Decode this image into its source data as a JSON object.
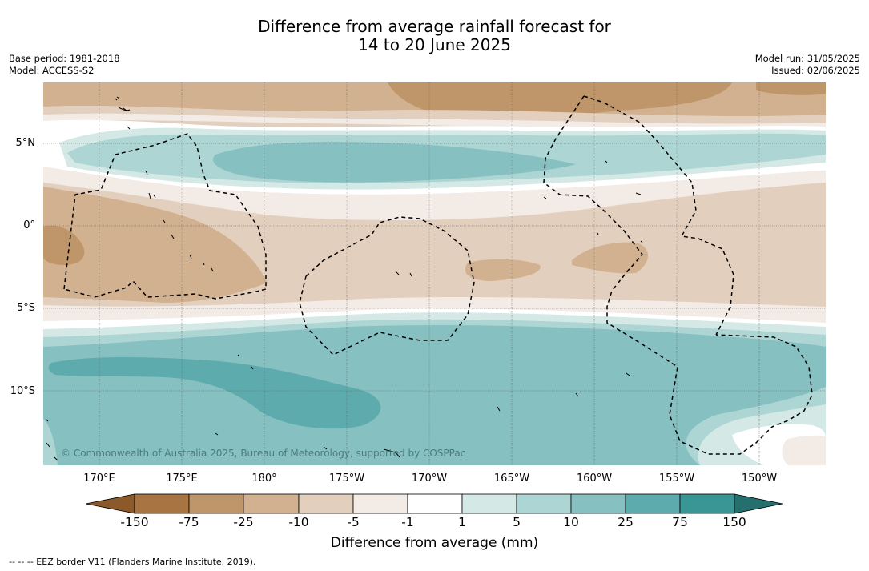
{
  "title_line1": "Difference from average rainfall forecast for",
  "title_line2": "14 to 20 June 2025",
  "base_period": "Base period: 1981-2018",
  "model": "Model: ACCESS-S2",
  "model_run": "Model run: 31/05/2025",
  "issued": "Issued: 02/06/2025",
  "copyright": "© Commonwealth of Australia 2025, Bureau of Meteorology, supported by COSPPac",
  "lat_labels": [
    "5°N",
    "0°",
    "5°S",
    "10°S"
  ],
  "lon_labels": [
    "170°E",
    "175°E",
    "180°",
    "175°W",
    "170°W",
    "165°W",
    "160°W",
    "155°W",
    "150°W"
  ],
  "colorbar": {
    "label": "Difference from average (mm)",
    "ticks": [
      "-150",
      "-75",
      "-25",
      "-10",
      "-5",
      "-1",
      "1",
      "5",
      "10",
      "25",
      "75",
      "150"
    ],
    "colors": {
      "below_min": "#8c5a2a",
      "b1": "#a87441",
      "b2": "#bf956a",
      "b3": "#d1b190",
      "b4": "#e3cfbd",
      "b5": "#f3ebe6",
      "b6": "#ffffff",
      "b7": "#d4e8e6",
      "b8": "#acd5d4",
      "b9": "#86c0c0",
      "b10": "#5eabad",
      "b11": "#3a9695",
      "above_max": "#25706f"
    }
  },
  "legend_note": "--  --  -- EEZ border V11 (Flanders Marine Institute, 2019)."
}
